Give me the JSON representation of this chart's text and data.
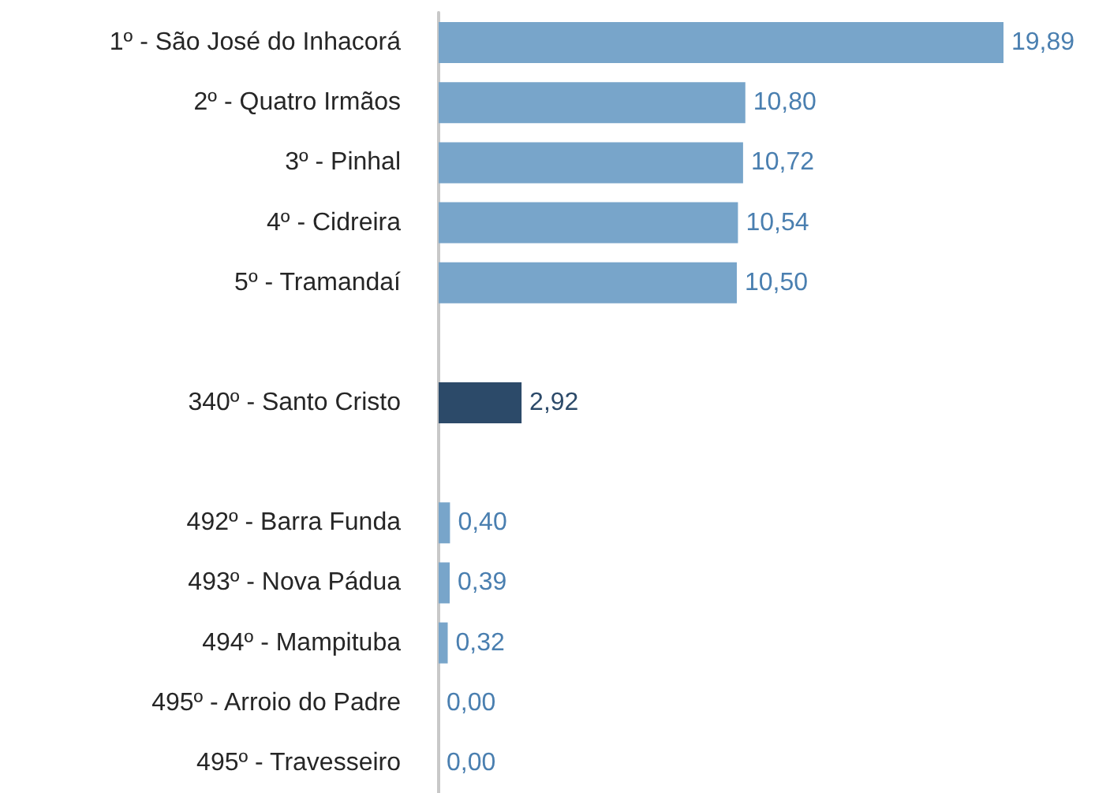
{
  "chart_data": {
    "type": "bar",
    "orientation": "horizontal",
    "categories": [
      "1º - São José do Inhacorá",
      "2º - Quatro Irmãos",
      "3º - Pinhal",
      "4º - Cidreira",
      "5º - Tramandaí",
      null,
      "340º - Santo Cristo",
      null,
      "492º - Barra Funda",
      "493º - Nova Pádua",
      "494º - Mampituba",
      "495º - Arroio do Padre",
      "495º - Travesseiro"
    ],
    "values": [
      19.89,
      10.8,
      10.72,
      10.54,
      10.5,
      null,
      2.92,
      null,
      0.4,
      0.39,
      0.32,
      0.0,
      0.0
    ],
    "colors": [
      "#78a5ca",
      "#78a5ca",
      "#78a5ca",
      "#78a5ca",
      "#78a5ca",
      null,
      "#2c4a69",
      null,
      "#78a5ca",
      "#78a5ca",
      "#78a5ca",
      "#78a5ca",
      "#78a5ca"
    ],
    "value_labels": [
      "19,89",
      "10,80",
      "10,72",
      "10,54",
      "10,50",
      null,
      "2,92",
      null,
      "0,40",
      "0,39",
      "0,32",
      "0,00",
      "0,00"
    ]
  }
}
